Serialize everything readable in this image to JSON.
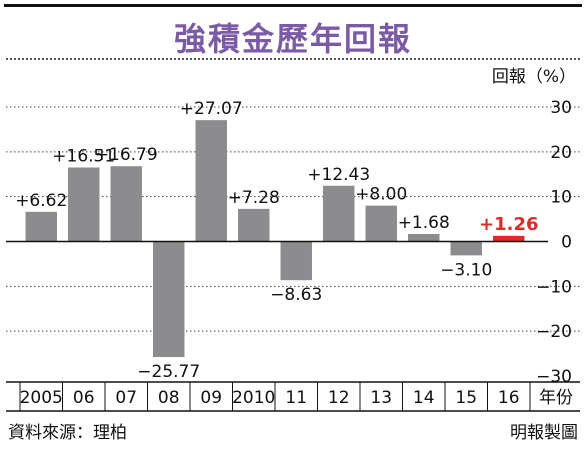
{
  "source": "資料來源：理柏",
  "credit": "明報製圖",
  "colors": {
    "bar": "#8c8c8e",
    "highlight": "#e02a2a",
    "highlight_text": "#e02a2a",
    "title": "#7b5aa6"
  },
  "chart_data": {
    "type": "bar",
    "title": "強積金歷年回報",
    "ylabel": "回報（%）",
    "xlabel": "年份",
    "categories": [
      "2005",
      "06",
      "07",
      "08",
      "09",
      "2010",
      "11",
      "12",
      "13",
      "14",
      "15",
      "16"
    ],
    "values": [
      6.62,
      16.51,
      16.79,
      -25.77,
      27.07,
      7.28,
      -8.63,
      12.43,
      8.0,
      1.68,
      -3.1,
      1.26
    ],
    "value_labels": [
      "+6.62",
      "+16.51",
      "+16.79",
      "−25.77",
      "+27.07",
      "+7.28",
      "−8.63",
      "+12.43",
      "+8.00",
      "+1.68",
      "−3.10",
      "+1.26"
    ],
    "highlight_index": 11,
    "ylim": [
      -30,
      30
    ],
    "yticks": [
      30,
      20,
      10,
      0,
      -10,
      -20,
      -30
    ],
    "ytick_labels": [
      "30",
      "20",
      "10",
      "0",
      "−10",
      "−20",
      "−30"
    ],
    "grid": true
  }
}
